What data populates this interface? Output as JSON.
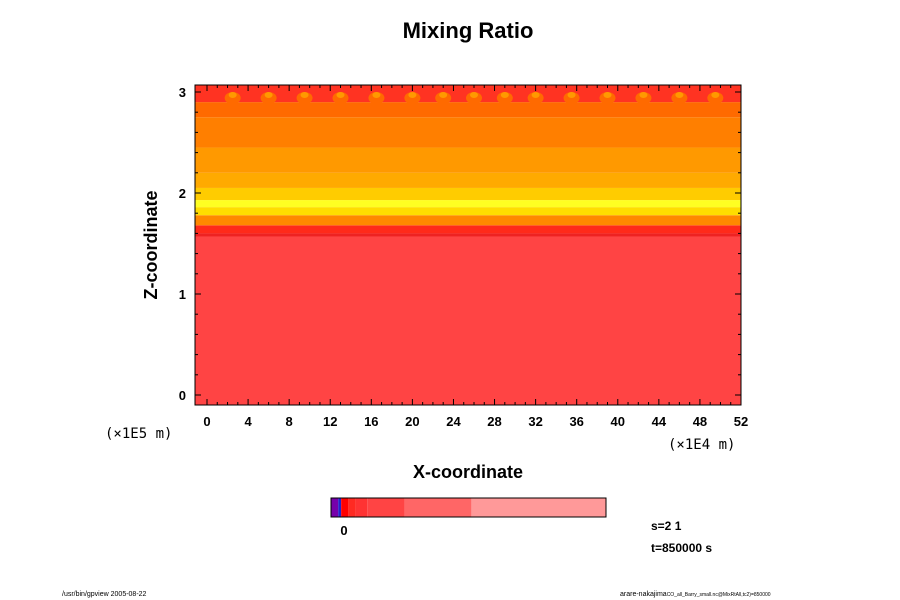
{
  "chart_data": {
    "type": "heatmap",
    "title": "Mixing Ratio",
    "xlabel": "X-coordinate",
    "ylabel": "Z-coordinate",
    "x_ticks": [
      "0",
      "4",
      "8",
      "12",
      "16",
      "20",
      "24",
      "28",
      "32",
      "36",
      "40",
      "44",
      "48",
      "52"
    ],
    "y_ticks": [
      "0",
      "1",
      "2",
      "3"
    ],
    "x_scale_label": "(×1E4 m)",
    "y_scale_label": "(×1E5 m)",
    "xlim": [
      0,
      52
    ],
    "ylim": [
      0,
      3
    ],
    "layers": [
      {
        "z_from": -0.1,
        "z_to": 1.6,
        "color": "#ff4444"
      },
      {
        "z_from": 1.6,
        "z_to": 1.68,
        "color": "#ff2a1a"
      },
      {
        "z_from": 1.68,
        "z_to": 1.78,
        "color": "#ff8800"
      },
      {
        "z_from": 1.78,
        "z_to": 1.86,
        "color": "#ffdd00"
      },
      {
        "z_from": 1.86,
        "z_to": 1.93,
        "color": "#ffff22"
      },
      {
        "z_from": 1.93,
        "z_to": 2.05,
        "color": "#ffcc00"
      },
      {
        "z_from": 2.05,
        "z_to": 2.2,
        "color": "#ffaa00"
      },
      {
        "z_from": 2.2,
        "z_to": 2.45,
        "color": "#ff9900"
      },
      {
        "z_from": 2.45,
        "z_to": 2.75,
        "color": "#ff7f00"
      },
      {
        "z_from": 2.75,
        "z_to": 2.9,
        "color": "#ff6a00"
      },
      {
        "z_from": 2.9,
        "z_to": 3.1,
        "color": "#ff3322"
      }
    ],
    "top_cells_x": [
      2.5,
      6,
      9.5,
      13,
      16.5,
      20,
      23,
      26,
      29,
      32,
      35.5,
      39,
      42.5,
      46,
      49.5
    ],
    "colorbar": {
      "segments": [
        {
          "color": "#7700aa",
          "weight": 1
        },
        {
          "color": "#2222cc",
          "weight": 0.4
        },
        {
          "color": "#ff0000",
          "weight": 1
        },
        {
          "color": "#ff2a22",
          "weight": 1
        },
        {
          "color": "#ff3333",
          "weight": 1.6
        },
        {
          "color": "#ff4444",
          "weight": 5.2
        },
        {
          "color": "#ff6666",
          "weight": 9.2
        },
        {
          "color": "#ff9999",
          "weight": 18.6
        }
      ],
      "tick_label": "0"
    },
    "info": {
      "s": "s=2 1",
      "t": "t=850000 s"
    }
  },
  "footer": {
    "left": "/usr/bin/gpview 2005-08-22",
    "right_main": "arare-nakajima",
    "right_small": "CO_all_Barry_small.nc@MixRtAll,tc2)=850000"
  }
}
